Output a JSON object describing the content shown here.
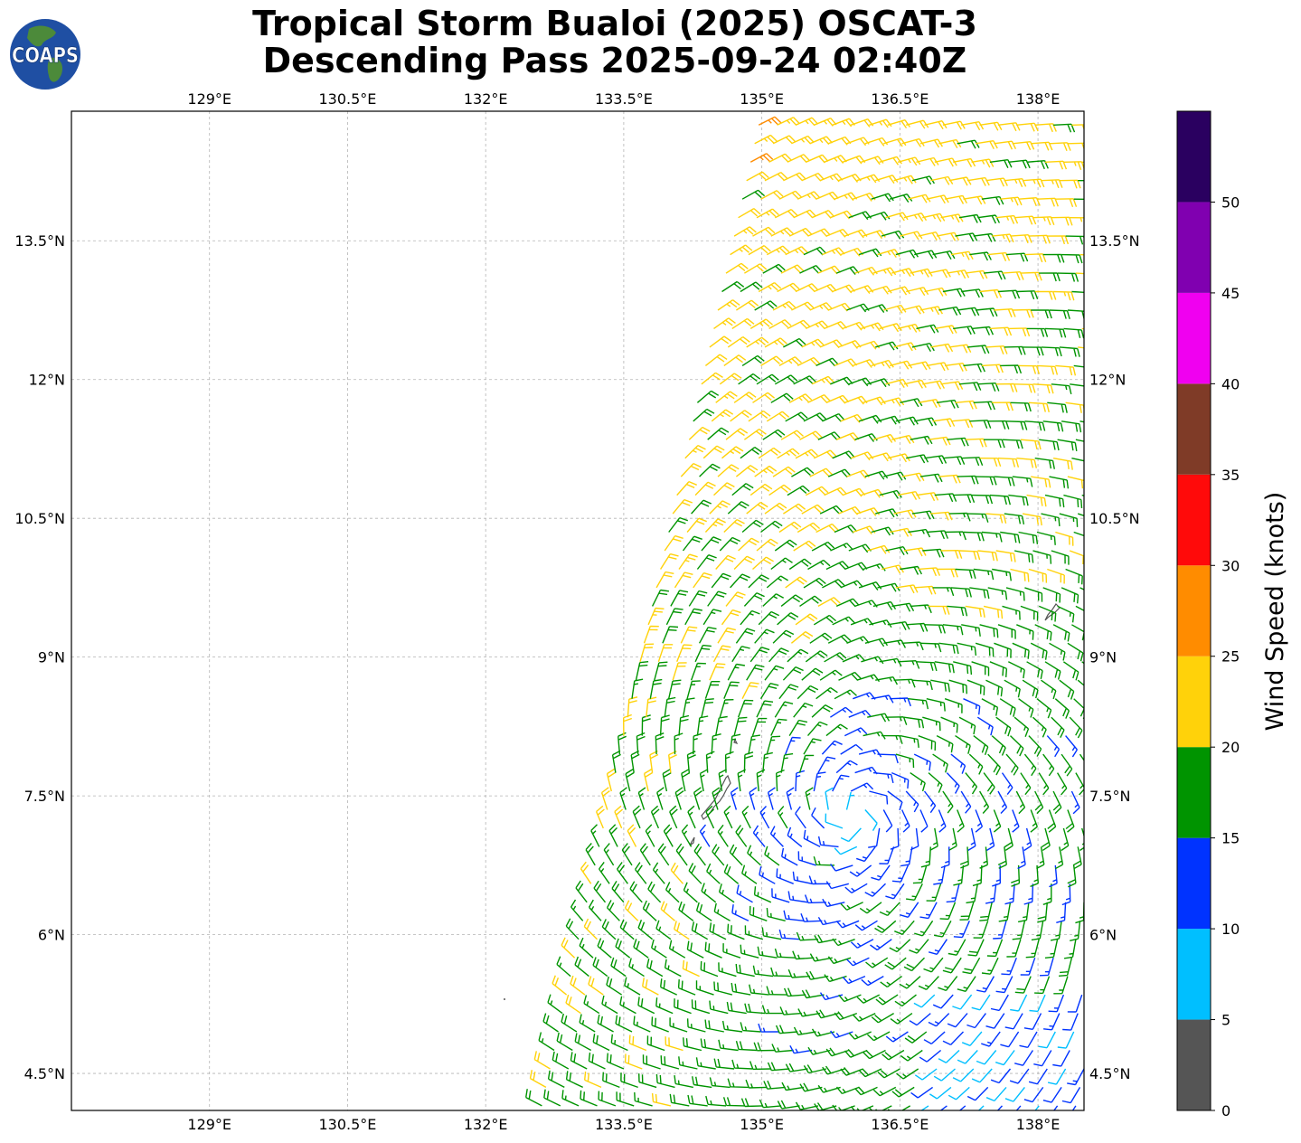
{
  "title_line1": "Tropical Storm Bualoi (2025) OSCAT-3",
  "title_line2": "Descending Pass 2025-09-24 02:40Z",
  "logo": {
    "text": "COAPS",
    "ocean_color": "#1f4fa3",
    "land_color": "#4c8a3a"
  },
  "map": {
    "lon_range": [
      127.5,
      138.5
    ],
    "lat_range": [
      4.1,
      14.9
    ],
    "lon_ticks": [
      {
        "value": 129,
        "label": "129°E"
      },
      {
        "value": 130.5,
        "label": "130.5°E"
      },
      {
        "value": 132,
        "label": "132°E"
      },
      {
        "value": 133.5,
        "label": "133.5°E"
      },
      {
        "value": 135,
        "label": "135°E"
      },
      {
        "value": 136.5,
        "label": "136.5°E"
      },
      {
        "value": 138,
        "label": "138°E"
      }
    ],
    "lat_ticks": [
      {
        "value": 4.5,
        "label": "4.5°N"
      },
      {
        "value": 6,
        "label": "6°N"
      },
      {
        "value": 7.5,
        "label": "7.5°N"
      },
      {
        "value": 9,
        "label": "9°N"
      },
      {
        "value": 10.5,
        "label": "10.5°N"
      },
      {
        "value": 12,
        "label": "12°N"
      },
      {
        "value": 13.5,
        "label": "13.5°N"
      }
    ],
    "storm_center": {
      "lon": 136.0,
      "lat": 7.3
    },
    "coastline_color": "#555555"
  },
  "colorbar": {
    "label": "Wind Speed (knots)",
    "bins": [
      {
        "min": 0,
        "max": 5,
        "color": "#555555"
      },
      {
        "min": 5,
        "max": 10,
        "color": "#00bfff"
      },
      {
        "min": 10,
        "max": 15,
        "color": "#0033ff"
      },
      {
        "min": 15,
        "max": 20,
        "color": "#009400"
      },
      {
        "min": 20,
        "max": 25,
        "color": "#ffd20a"
      },
      {
        "min": 25,
        "max": 30,
        "color": "#ff8c00"
      },
      {
        "min": 30,
        "max": 35,
        "color": "#ff0a0a"
      },
      {
        "min": 35,
        "max": 40,
        "color": "#7f3b27"
      },
      {
        "min": 40,
        "max": 45,
        "color": "#f000f0"
      },
      {
        "min": 45,
        "max": 50,
        "color": "#8000b0"
      },
      {
        "min": 50,
        "max": 55,
        "color": "#2a0060"
      }
    ],
    "tick_labels": [
      "0",
      "5",
      "10",
      "15",
      "20",
      "25",
      "30",
      "35",
      "40",
      "45",
      "50"
    ]
  }
}
